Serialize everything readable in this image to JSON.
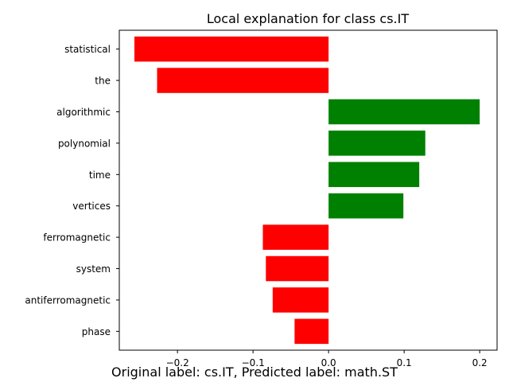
{
  "caption": "Original label: cs.IT, Predicted label: math.ST",
  "colors": {
    "positive": "#008000",
    "negative": "#ff0000"
  },
  "chart_data": {
    "type": "bar",
    "orientation": "horizontal",
    "title": "Local explanation for class cs.IT",
    "xlabel": "",
    "ylabel": "",
    "categories": [
      "statistical",
      "the",
      "algorithmic",
      "polynomial",
      "time",
      "vertices",
      "ferromagnetic",
      "system",
      "antiferromagnetic",
      "phase"
    ],
    "values": [
      -0.257,
      -0.227,
      0.2,
      0.128,
      0.12,
      0.099,
      -0.087,
      -0.083,
      -0.074,
      -0.045
    ],
    "xlim": [
      -0.277,
      0.223
    ],
    "xticks": [
      -0.2,
      -0.1,
      0.0,
      0.1,
      0.2
    ],
    "xtick_labels": [
      "−0.2",
      "−0.1",
      "0.0",
      "0.1",
      "0.2"
    ],
    "grid": false,
    "legend": "none"
  }
}
